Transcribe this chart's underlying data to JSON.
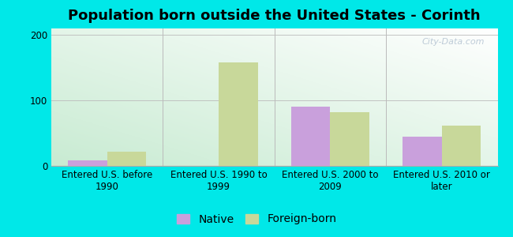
{
  "title": "Population born outside the United States - Corinth",
  "categories": [
    "Entered U.S. before\n1990",
    "Entered U.S. 1990 to\n1999",
    "Entered U.S. 2000 to\n2009",
    "Entered U.S. 2010 or\nlater"
  ],
  "native_values": [
    8,
    0,
    90,
    45
  ],
  "foreign_values": [
    22,
    158,
    82,
    62
  ],
  "native_color": "#c9a0dc",
  "foreign_color": "#c8d89a",
  "ylim": [
    0,
    210
  ],
  "yticks": [
    0,
    100,
    200
  ],
  "bar_width": 0.35,
  "outer_bg": "#00e8e8",
  "title_fontsize": 13,
  "legend_fontsize": 10,
  "tick_fontsize": 8.5,
  "watermark": "City-Data.com"
}
